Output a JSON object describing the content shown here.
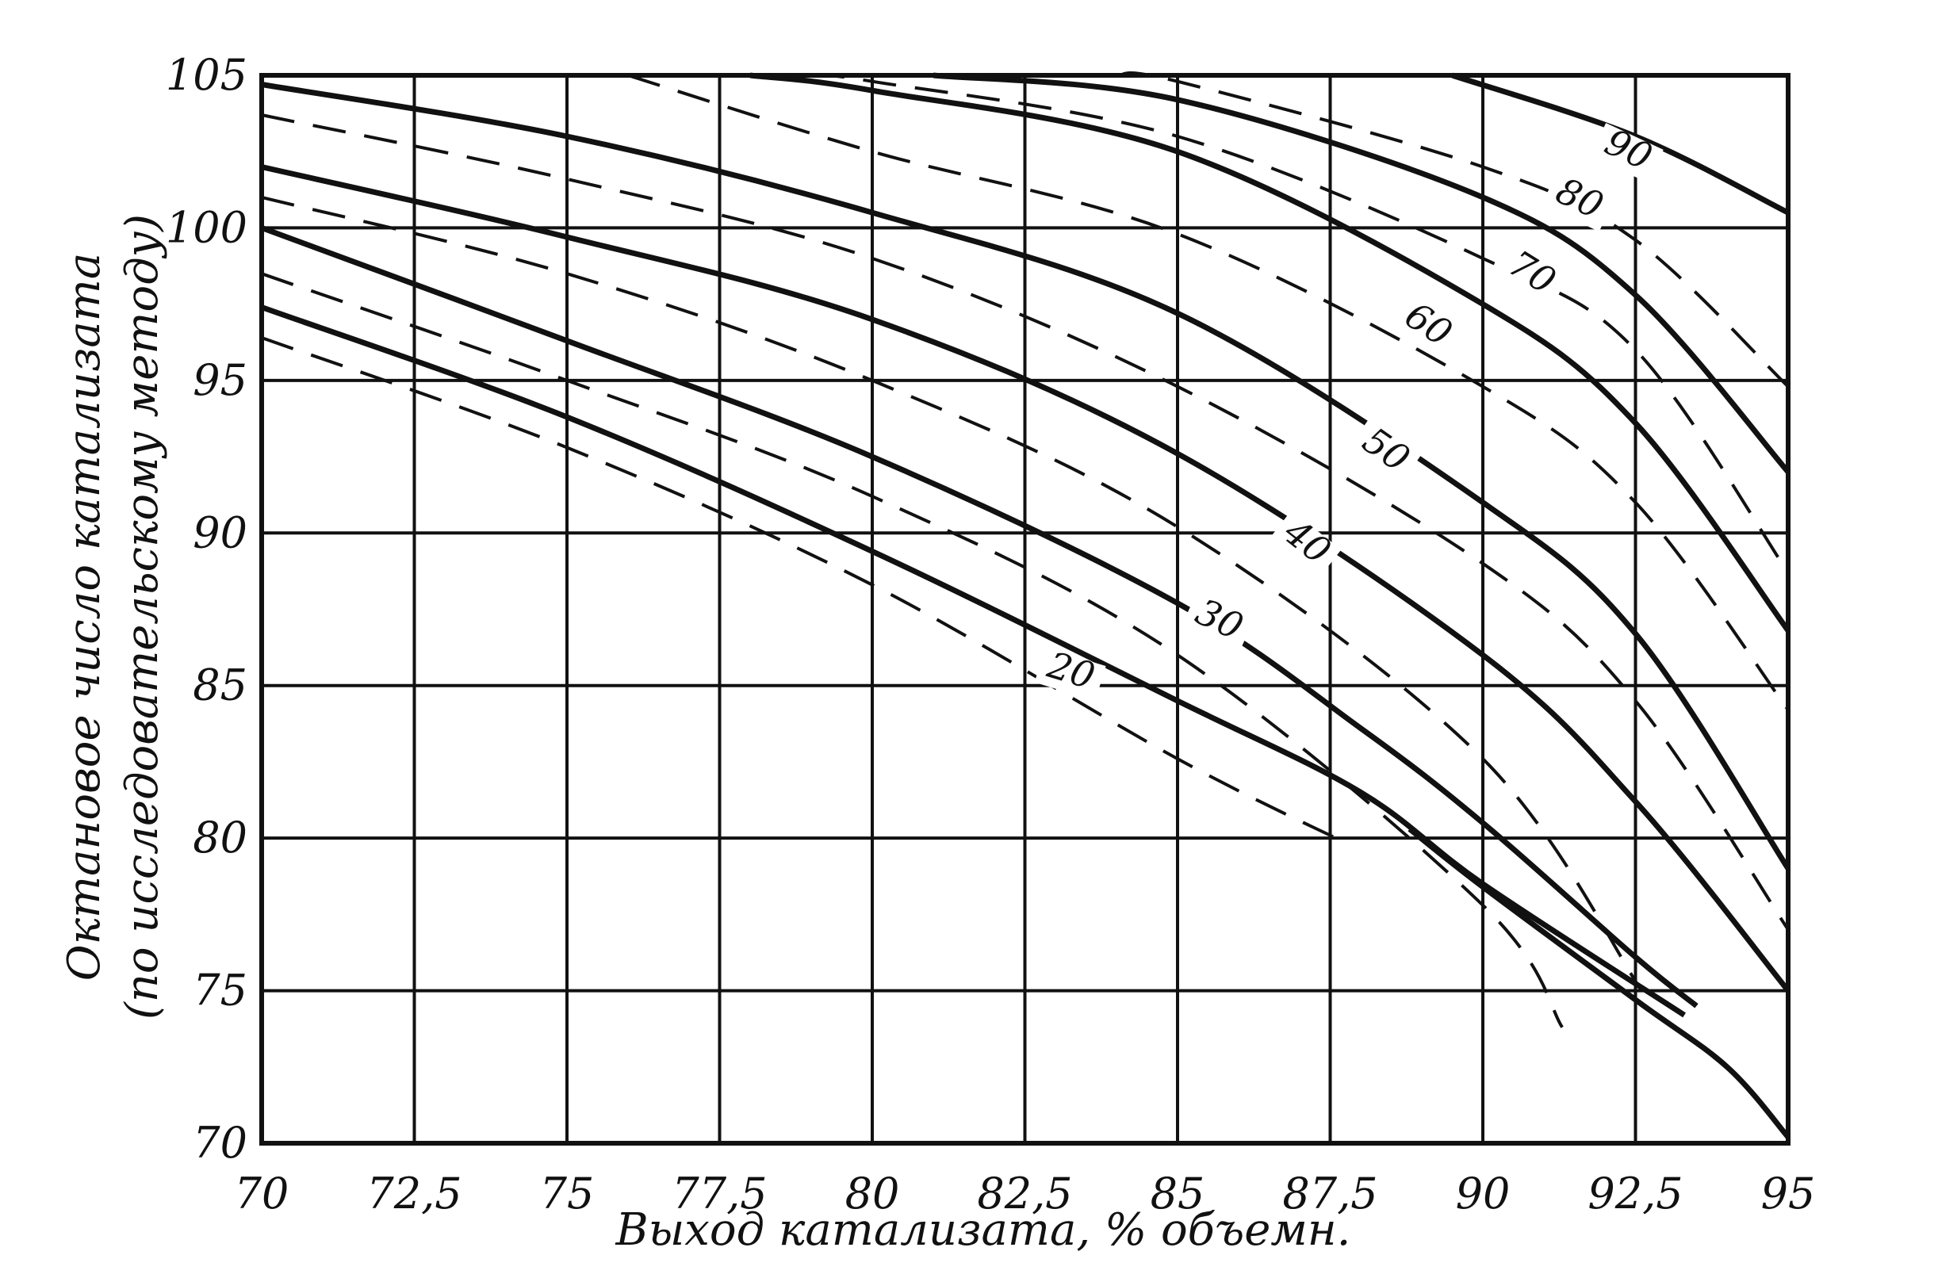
{
  "chart_data": {
    "type": "line",
    "xlabel": "Выход катализата, % объемн.",
    "ylabel_line1": "Октановое число катализата",
    "ylabel_line2": "(по исследовательскому методу)",
    "xlim": [
      70,
      95
    ],
    "ylim": [
      70,
      105
    ],
    "x_ticks": [
      "70",
      "72,5",
      "75",
      "77,5",
      "80",
      "82,5",
      "85",
      "87,5",
      "90",
      "92,5",
      "95"
    ],
    "y_ticks": [
      "70",
      "75",
      "80",
      "85",
      "90",
      "95",
      "100",
      "105"
    ],
    "grid": true,
    "solid_series": [
      {
        "x": [
          70,
          75,
          80,
          85,
          88,
          90,
          93.3
        ],
        "y": [
          97.4,
          93.8,
          89.4,
          84.5,
          81.5,
          78.5,
          74.2
        ]
      },
      {
        "x": [
          70,
          75,
          80,
          85,
          88,
          90,
          92.5,
          93.5
        ],
        "y": [
          100,
          96.3,
          92.5,
          87.7,
          83.6,
          80.5,
          76.1,
          74.5
        ]
      },
      {
        "x": [
          70,
          75,
          80,
          85,
          90,
          92.5,
          95
        ],
        "y": [
          102,
          99.7,
          97,
          92.6,
          86,
          81.2,
          75
        ]
      },
      {
        "x": [
          70,
          75,
          80,
          85,
          90,
          92.5,
          95
        ],
        "y": [
          104.7,
          103,
          100.5,
          97.2,
          91,
          86.7,
          79
        ]
      },
      {
        "x": [
          78,
          80,
          85,
          90,
          92.5,
          95
        ],
        "y": [
          105,
          104.5,
          102.5,
          97.5,
          93.6,
          86.8
        ]
      },
      {
        "x": [
          81,
          85,
          90,
          92.5,
          95
        ],
        "y": [
          105,
          104.2,
          101,
          97.8,
          92
        ]
      },
      {
        "x": [
          89.5,
          92.5,
          95
        ],
        "y": [
          105,
          103,
          100.5
        ]
      },
      {
        "x": [
          88.8,
          90,
          92.5,
          94,
          95
        ],
        "y": [
          80.3,
          78.4,
          74.7,
          72.5,
          70.2
        ]
      }
    ],
    "dashed_series": [
      {
        "x": [
          70,
          75,
          80,
          85,
          87.8
        ],
        "y": [
          96.4,
          92.8,
          88.3,
          82.6,
          79.8
        ]
      },
      {
        "x": [
          70,
          75,
          80,
          85,
          90,
          91.3
        ],
        "y": [
          98.5,
          95,
          91.2,
          86,
          77.8,
          73.8
        ]
      },
      {
        "x": [
          70,
          75,
          80,
          85,
          90,
          92.6
        ],
        "y": [
          101,
          98.5,
          95,
          90.2,
          82.6,
          75
        ]
      },
      {
        "x": [
          70,
          75,
          80,
          85,
          90,
          92.5,
          95
        ],
        "y": [
          103.7,
          101.6,
          99,
          94.8,
          89,
          84.5,
          77
        ]
      },
      {
        "x": [
          76,
          80,
          85,
          90,
          92.5,
          95
        ],
        "y": [
          105,
          102.5,
          99.8,
          94.8,
          91,
          84.2
        ]
      },
      {
        "x": [
          79,
          80,
          85,
          90,
          92.5,
          95
        ],
        "y": [
          105,
          104.8,
          103,
          99,
          96,
          88.7
        ]
      },
      {
        "x": [
          84,
          85,
          90,
          92.5,
          95
        ],
        "y": [
          105,
          104.8,
          102,
          99.6,
          94.8
        ]
      }
    ],
    "curve_labels": [
      {
        "text": "20",
        "x": 83.2,
        "y": 85.1,
        "angle": -17
      },
      {
        "text": "30",
        "x": 85.6,
        "y": 86.8,
        "angle": -25
      },
      {
        "text": "40",
        "x": 87,
        "y": 89.4,
        "angle": -38
      },
      {
        "text": "50",
        "x": 88.3,
        "y": 92.4,
        "angle": -35
      },
      {
        "text": "60",
        "x": 89,
        "y": 96.5,
        "angle": -33
      },
      {
        "text": "70",
        "x": 90.7,
        "y": 98.2,
        "angle": -32
      },
      {
        "text": "80",
        "x": 91.5,
        "y": 100.6,
        "angle": -25
      },
      {
        "text": "90",
        "x": 92.3,
        "y": 102.2,
        "angle": -25
      }
    ]
  }
}
